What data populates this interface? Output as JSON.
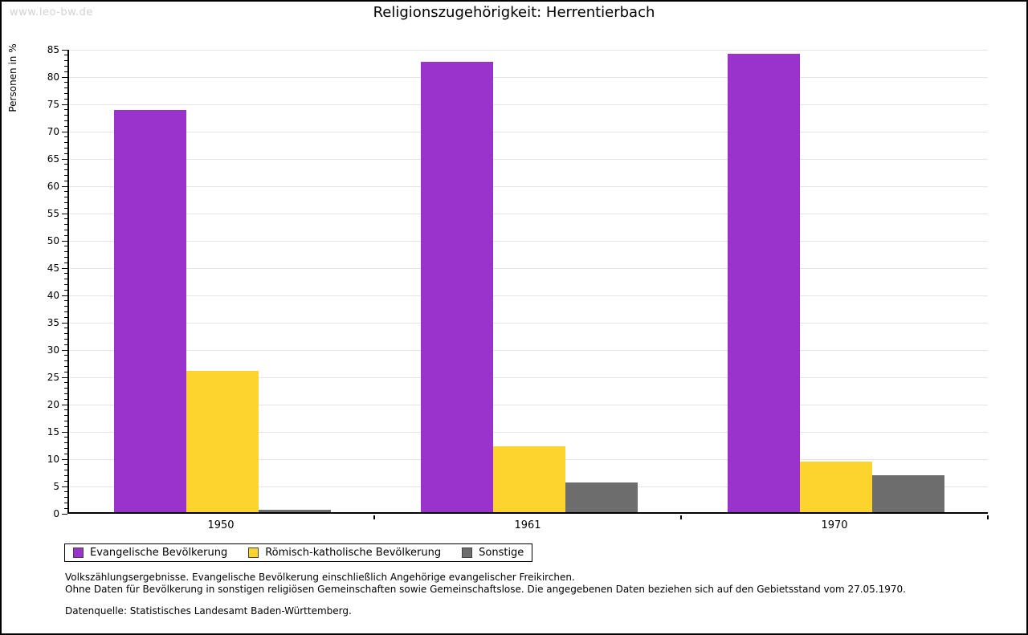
{
  "page": {
    "watermark": "www.leo-bw.de",
    "title": "Religionszugehörigkeit: Herrentierbach"
  },
  "chart_data": {
    "type": "bar",
    "title": "Religionszugehörigkeit: Herrentierbach",
    "categories": [
      "1950",
      "1961",
      "1970"
    ],
    "series": [
      {
        "name": "Evangelische Bevölkerung",
        "color": "#9933cc",
        "values": [
          73.7,
          82.5,
          83.9
        ]
      },
      {
        "name": "Römisch-katholische Bevölkerung",
        "color": "#fdd32d",
        "values": [
          25.9,
          12.0,
          9.3
        ]
      },
      {
        "name": "Sonstige",
        "color": "#6d6d6d",
        "values": [
          0.4,
          5.5,
          6.8
        ]
      }
    ],
    "ylabel": "Personen in %",
    "ylim": [
      0,
      85
    ],
    "ytick_step": 5,
    "minor_tick_step": 1,
    "grid": true,
    "gridline_color": "#e4e4e4",
    "legend_position": "bottom"
  },
  "footnotes": {
    "line1": "Volkszählungsergebnisse. Evangelische Bevölkerung einschließlich Angehörige evangelischer Freikirchen.",
    "line2": "Ohne Daten für Bevölkerung in sonstigen religiösen Gemeinschaften sowie Gemeinschaftslose. Die angegebenen Daten beziehen sich auf den Gebietsstand vom 27.05.1970.",
    "source": "Datenquelle: Statistisches Landesamt Baden-Württemberg."
  }
}
